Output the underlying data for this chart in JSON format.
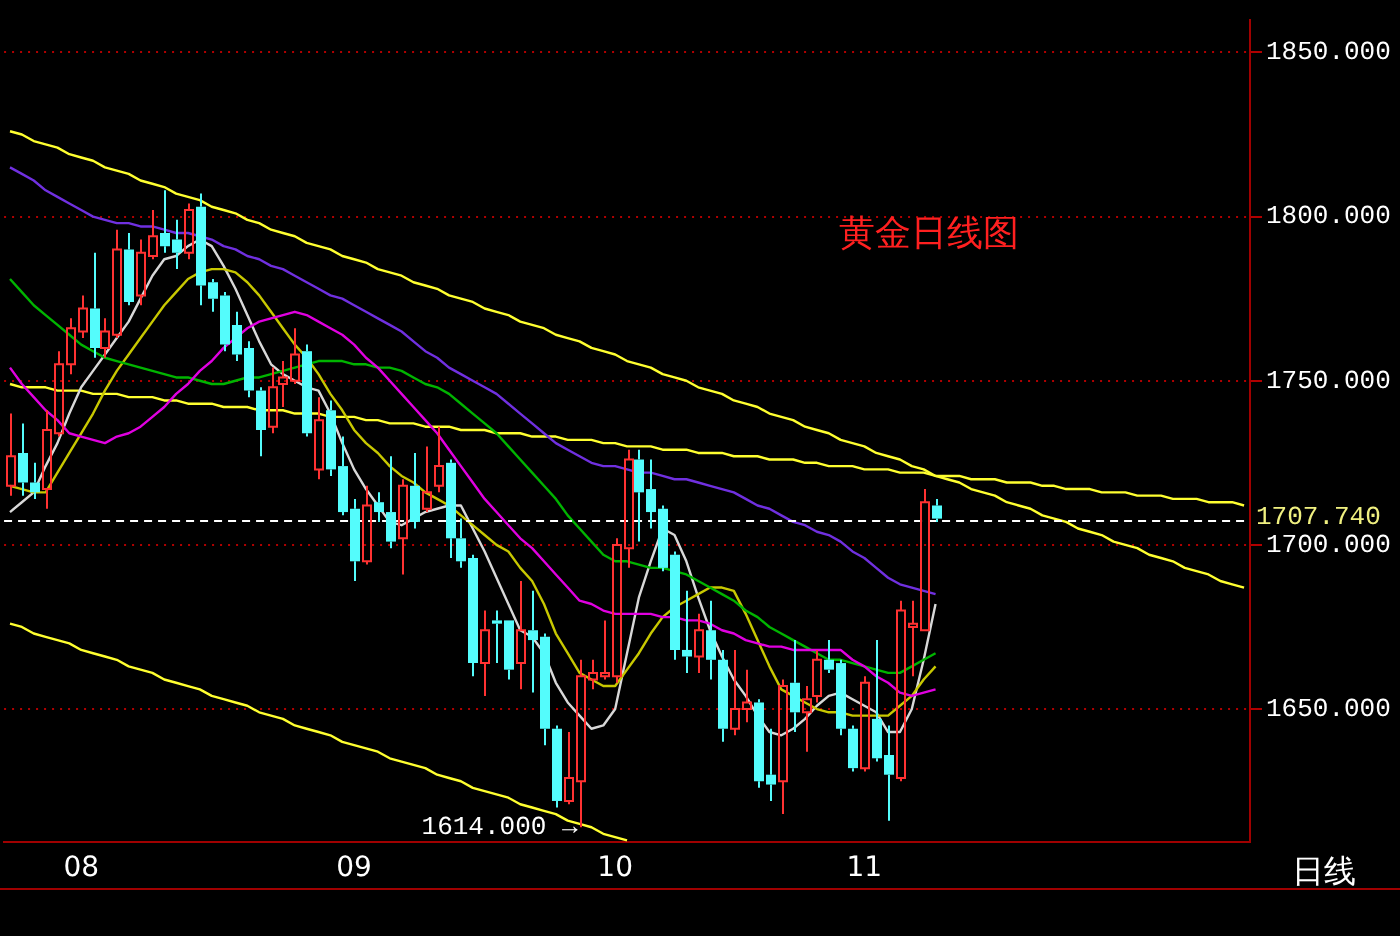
{
  "chart_data": {
    "type": "candlestick",
    "title": "黄金日线图",
    "xlabel": "日线",
    "categories": [
      null,
      null,
      null,
      null,
      null,
      null,
      "08",
      null,
      null,
      null,
      null,
      null,
      null,
      null,
      null,
      null,
      null,
      null,
      null,
      null,
      null,
      null,
      null,
      null,
      null,
      null,
      null,
      null,
      null,
      "09",
      null,
      null,
      null,
      null,
      null,
      null,
      null,
      null,
      null,
      null,
      null,
      null,
      null,
      null,
      null,
      null,
      null,
      null,
      null,
      null,
      null,
      "10",
      null,
      null,
      null,
      null,
      null,
      null,
      null,
      null,
      null,
      null,
      null,
      null,
      null,
      null,
      null,
      null,
      null,
      null,
      null,
      null,
      "11",
      null,
      null,
      null,
      null,
      null,
      null,
      null,
      null,
      null,
      null,
      null,
      null,
      null,
      null,
      null,
      null,
      null,
      null,
      null,
      null,
      null,
      null,
      null,
      null,
      null,
      null,
      null,
      null,
      null,
      null,
      null,
      null
    ],
    "ohlc": [
      [
        1718,
        1740,
        1715,
        1727
      ],
      [
        1728,
        1737,
        1715,
        1719
      ],
      [
        1719,
        1725,
        1714,
        1716
      ],
      [
        1717,
        1741,
        1711,
        1735
      ],
      [
        1734,
        1759,
        1733,
        1755
      ],
      [
        1755,
        1769,
        1752,
        1766
      ],
      [
        1765,
        1776,
        1763,
        1772
      ],
      [
        1772,
        1789,
        1757,
        1760
      ],
      [
        1760,
        1769,
        1757,
        1765
      ],
      [
        1764,
        1796,
        1763,
        1790
      ],
      [
        1790,
        1795,
        1773,
        1774
      ],
      [
        1776,
        1793,
        1773,
        1789
      ],
      [
        1788,
        1802,
        1787,
        1794
      ],
      [
        1795,
        1808,
        1789,
        1791
      ],
      [
        1793,
        1799,
        1784,
        1789
      ],
      [
        1789,
        1804,
        1787,
        1802
      ],
      [
        1803,
        1807,
        1773,
        1779
      ],
      [
        1780,
        1781,
        1771,
        1775
      ],
      [
        1776,
        1777,
        1759,
        1761
      ],
      [
        1767,
        1771,
        1756,
        1758
      ],
      [
        1760,
        1762,
        1745,
        1747
      ],
      [
        1747,
        1748,
        1727,
        1735
      ],
      [
        1736,
        1754,
        1734,
        1748
      ],
      [
        1749,
        1756,
        1742,
        1751
      ],
      [
        1750,
        1766,
        1749,
        1758
      ],
      [
        1759,
        1761,
        1733,
        1734
      ],
      [
        1723,
        1745,
        1720,
        1738
      ],
      [
        1741,
        1744,
        1721,
        1723
      ],
      [
        1724,
        1733,
        1709,
        1710
      ],
      [
        1711,
        1714,
        1689,
        1695
      ],
      [
        1695,
        1718,
        1694,
        1712
      ],
      [
        1713,
        1716,
        1707,
        1710
      ],
      [
        1710,
        1727,
        1699,
        1701
      ],
      [
        1702,
        1720,
        1691,
        1718
      ],
      [
        1718,
        1728,
        1705,
        1707
      ],
      [
        1711,
        1730,
        1710,
        1716
      ],
      [
        1718,
        1736,
        1716,
        1724
      ],
      [
        1725,
        1726,
        1696,
        1702
      ],
      [
        1702,
        1708,
        1693,
        1695
      ],
      [
        1696,
        1697,
        1660,
        1664
      ],
      [
        1664,
        1680,
        1654,
        1674
      ],
      [
        1677,
        1680,
        1664,
        1676
      ],
      [
        1677,
        1677,
        1659,
        1662
      ],
      [
        1664,
        1689,
        1656,
        1674
      ],
      [
        1674,
        1686,
        1655,
        1671
      ],
      [
        1672,
        1673,
        1639,
        1644
      ],
      [
        1644,
        1645,
        1620,
        1622
      ],
      [
        1622,
        1643,
        1621,
        1629
      ],
      [
        1628,
        1665,
        1614,
        1660
      ],
      [
        1659,
        1665,
        1656,
        1661
      ],
      [
        1660,
        1677,
        1659,
        1661
      ],
      [
        1660,
        1702,
        1658,
        1700
      ],
      [
        1699,
        1729,
        1693,
        1726
      ],
      [
        1726,
        1729,
        1701,
        1716
      ],
      [
        1717,
        1726,
        1705,
        1710
      ],
      [
        1711,
        1712,
        1692,
        1693
      ],
      [
        1697,
        1698,
        1665,
        1668
      ],
      [
        1668,
        1686,
        1661,
        1666
      ],
      [
        1666,
        1679,
        1661,
        1674
      ],
      [
        1674,
        1683,
        1659,
        1665
      ],
      [
        1665,
        1668,
        1640,
        1644
      ],
      [
        1644,
        1668,
        1642,
        1650
      ],
      [
        1650,
        1662,
        1646,
        1652
      ],
      [
        1652,
        1653,
        1626,
        1628
      ],
      [
        1630,
        1644,
        1622,
        1627
      ],
      [
        1628,
        1659,
        1618,
        1657
      ],
      [
        1658,
        1671,
        1643,
        1649
      ],
      [
        1649,
        1657,
        1637,
        1653
      ],
      [
        1654,
        1668,
        1652,
        1665
      ],
      [
        1665,
        1671,
        1661,
        1662
      ],
      [
        1664,
        1665,
        1642,
        1644
      ],
      [
        1644,
        1645,
        1631,
        1632
      ],
      [
        1632,
        1660,
        1631,
        1658
      ],
      [
        1647,
        1671,
        1634,
        1635
      ],
      [
        1636,
        1645,
        1616,
        1630
      ],
      [
        1629,
        1683,
        1628,
        1680
      ],
      [
        1675,
        1683,
        1660,
        1676
      ],
      [
        1674,
        1717,
        1674,
        1713
      ],
      [
        1712,
        1714,
        1707,
        1708
      ],
      null,
      null,
      null,
      null,
      null,
      null,
      null,
      null,
      null,
      null,
      null,
      null,
      null,
      null,
      null,
      null,
      null,
      null,
      null,
      null,
      null,
      null,
      null,
      null,
      null,
      null
    ],
    "colors": [
      "#ff3232",
      "#54fcfc",
      "#54fcfc",
      "#ff3232",
      "#ff3232",
      "#ff3232",
      "#ff3232",
      "#54fcfc",
      "#ff3232",
      "#ff3232",
      "#54fcfc",
      "#ff3232",
      "#ff3232",
      "#54fcfc",
      "#54fcfc",
      "#ff3232",
      "#54fcfc",
      "#54fcfc",
      "#54fcfc",
      "#54fcfc",
      "#54fcfc",
      "#54fcfc",
      "#ff3232",
      "#ff3232",
      "#ff3232",
      "#54fcfc",
      "#ff3232",
      "#54fcfc",
      "#54fcfc",
      "#54fcfc",
      "#ff3232",
      "#54fcfc",
      "#54fcfc",
      "#ff3232",
      "#54fcfc",
      "#ff3232",
      "#ff3232",
      "#54fcfc",
      "#54fcfc",
      "#54fcfc",
      "#ff3232",
      "#54fcfc",
      "#54fcfc",
      "#ff3232",
      "#54fcfc",
      "#54fcfc",
      "#54fcfc",
      "#ff3232",
      "#ff3232",
      "#ff3232",
      "#ff3232",
      "#ff3232",
      "#ff3232",
      "#54fcfc",
      "#54fcfc",
      "#54fcfc",
      "#54fcfc",
      "#54fcfc",
      "#ff3232",
      "#54fcfc",
      "#54fcfc",
      "#ff3232",
      "#ff3232",
      "#54fcfc",
      "#54fcfc",
      "#ff3232",
      "#54fcfc",
      "#ff3232",
      "#ff3232",
      "#54fcfc",
      "#54fcfc",
      "#54fcfc",
      "#ff3232",
      "#54fcfc",
      "#54fcfc",
      "#ff3232",
      "#ff3232",
      "#ff3232",
      "#54fcfc",
      null,
      null,
      null,
      null,
      null,
      null,
      null,
      null,
      null,
      null,
      null,
      null,
      null,
      null,
      null,
      null,
      null,
      null,
      null,
      null,
      null,
      null,
      null,
      null,
      null,
      null
    ],
    "series": [
      {
        "type": "line",
        "color": "#7030e0",
        "values": [
          1815,
          1813,
          1811,
          1808,
          1806,
          1804,
          1802,
          1800,
          1799,
          1798,
          1798,
          1797,
          1797,
          1796,
          1795,
          1795,
          1794,
          1793,
          1791,
          1790,
          1788,
          1787,
          1785,
          1784,
          1782,
          1780,
          1778,
          1776,
          1775,
          1773,
          1771,
          1769,
          1767,
          1765,
          1762,
          1759,
          1757,
          1754,
          1752,
          1750,
          1748,
          1746,
          1743,
          1740,
          1737,
          1734,
          1731,
          1729,
          1727,
          1725,
          1724,
          1724,
          1723,
          1722,
          1722,
          1721,
          1720,
          1720,
          1719,
          1718,
          1717,
          1716,
          1714,
          1712,
          1711,
          1709,
          1707,
          1706,
          1704,
          1703,
          1701,
          1698,
          1696,
          1693,
          1690,
          1688,
          1687,
          1686,
          1685,
          null,
          null,
          null,
          null,
          null,
          null,
          null,
          null,
          null,
          null,
          null,
          null,
          null,
          null,
          null,
          null,
          null,
          null,
          null,
          null,
          null,
          null,
          null,
          null,
          null,
          null
        ]
      },
      {
        "type": "line",
        "color": "#e000e0",
        "values": [
          1754,
          1749,
          1745,
          1741,
          1738,
          1734,
          1733,
          1732,
          1731,
          1733,
          1734,
          1736,
          1739,
          1742,
          1746,
          1749,
          1753,
          1756,
          1760,
          1763,
          1766,
          1768,
          1769,
          1770,
          1771,
          1770,
          1768,
          1766,
          1764,
          1761,
          1757,
          1754,
          1750,
          1746,
          1742,
          1738,
          1734,
          1729,
          1724,
          1719,
          1714,
          1710,
          1706,
          1702,
          1699,
          1695,
          1691,
          1687,
          1683,
          1682,
          1680,
          1679,
          1679,
          1679,
          1679,
          1678,
          1678,
          1677,
          1677,
          1676,
          1674,
          1673,
          1671,
          1670,
          1669,
          1669,
          1668,
          1668,
          1668,
          1668,
          1668,
          1665,
          1663,
          1660,
          1658,
          1655,
          1654,
          1655,
          1656,
          null,
          null,
          null,
          null,
          null,
          null,
          null,
          null,
          null,
          null,
          null,
          null,
          null,
          null,
          null,
          null,
          null,
          null,
          null,
          null,
          null,
          null,
          null,
          null,
          null,
          null
        ]
      },
      {
        "type": "line",
        "color": "#00b400",
        "values": [
          1781,
          1777,
          1773,
          1770,
          1767,
          1764,
          1761,
          1759,
          1757,
          1756,
          1755,
          1754,
          1753,
          1752,
          1751,
          1751,
          1750,
          1749,
          1749,
          1750,
          1751,
          1751,
          1752,
          1753,
          1754,
          1755,
          1756,
          1756,
          1756,
          1755,
          1755,
          1754,
          1754,
          1753,
          1751,
          1749,
          1748,
          1746,
          1743,
          1740,
          1737,
          1734,
          1730,
          1726,
          1722,
          1718,
          1714,
          1709,
          1705,
          1701,
          1697,
          1695,
          1695,
          1694,
          1693,
          1693,
          1692,
          1691,
          1689,
          1687,
          1685,
          1683,
          1680,
          1678,
          1675,
          1673,
          1671,
          1669,
          1667,
          1665,
          1665,
          1664,
          1663,
          1662,
          1661,
          1661,
          1663,
          1665,
          1667,
          null,
          null,
          null,
          null,
          null,
          null,
          null,
          null,
          null,
          null,
          null,
          null,
          null,
          null,
          null,
          null,
          null,
          null,
          null,
          null,
          null,
          null,
          null,
          null,
          null,
          null
        ]
      },
      {
        "type": "line",
        "color": "#c8c800",
        "values": [
          1718,
          1717,
          1716,
          1716,
          1722,
          1728,
          1734,
          1740,
          1747,
          1753,
          1758,
          1763,
          1768,
          1773,
          1777,
          1781,
          1783,
          1784,
          1784,
          1783,
          1780,
          1776,
          1771,
          1766,
          1761,
          1757,
          1752,
          1746,
          1741,
          1735,
          1731,
          1728,
          1724,
          1721,
          1719,
          1716,
          1714,
          1712,
          1709,
          1706,
          1703,
          1700,
          1698,
          1693,
          1689,
          1682,
          1673,
          1667,
          1661,
          1659,
          1657,
          1657,
          1662,
          1667,
          1673,
          1678,
          1681,
          1683,
          1685,
          1687,
          1687,
          1686,
          1679,
          1671,
          1663,
          1656,
          1654,
          1652,
          1650,
          1649,
          1649,
          1648,
          1648,
          1648,
          1648,
          1651,
          1654,
          1659,
          1663,
          null,
          null,
          null,
          null,
          null,
          null,
          null,
          null,
          null,
          null,
          null,
          null,
          null,
          null,
          null,
          null,
          null,
          null,
          null,
          null,
          null,
          null,
          null,
          null,
          null,
          null
        ]
      },
      {
        "type": "line",
        "color": "#d8d8d8",
        "values": [
          1710,
          1713,
          1716,
          1724,
          1731,
          1740,
          1748,
          1753,
          1758,
          1763,
          1768,
          1775,
          1782,
          1787,
          1788,
          1791,
          1793,
          1791,
          1785,
          1778,
          1770,
          1762,
          1755,
          1752,
          1750,
          1748,
          1747,
          1740,
          1731,
          1723,
          1717,
          1712,
          1707,
          1706,
          1708,
          1710,
          1711,
          1712,
          1712,
          1705,
          1698,
          1690,
          1682,
          1674,
          1672,
          1667,
          1658,
          1652,
          1648,
          1644,
          1645,
          1650,
          1667,
          1684,
          1695,
          1705,
          1703,
          1695,
          1684,
          1674,
          1666,
          1659,
          1654,
          1648,
          1643,
          1642,
          1644,
          1647,
          1651,
          1654,
          1655,
          1653,
          1651,
          1649,
          1643,
          1643,
          1650,
          1665,
          1682,
          null,
          null,
          null,
          null,
          null,
          null,
          null,
          null,
          null,
          null,
          null,
          null,
          null,
          null,
          null,
          null,
          null,
          null,
          null,
          null,
          null,
          null,
          null,
          null,
          null,
          null
        ]
      },
      {
        "type": "line",
        "color": "#ffff30",
        "values": [
          1826,
          1825,
          1823,
          1822,
          1821,
          1819,
          1818,
          1817,
          1815,
          1814,
          1813,
          1811,
          1810,
          1809,
          1807,
          1806,
          1805,
          1803,
          1802,
          1801,
          1799,
          1798,
          1796,
          1795,
          1794,
          1792,
          1791,
          1790,
          1788,
          1787,
          1786,
          1784,
          1783,
          1782,
          1780,
          1779,
          1778,
          1776,
          1775,
          1774,
          1772,
          1771,
          1770,
          1768,
          1767,
          1766,
          1764,
          1763,
          1762,
          1760,
          1759,
          1758,
          1756,
          1755,
          1754,
          1752,
          1751,
          1750,
          1748,
          1747,
          1746,
          1744,
          1743,
          1742,
          1740,
          1739,
          1738,
          1736,
          1735,
          1734,
          1732,
          1731,
          1730,
          1728,
          1727,
          1726,
          1724,
          1723,
          1721,
          1720,
          1719,
          1717,
          1716,
          1715,
          1713,
          1712,
          1711,
          1709,
          1708,
          1707,
          1705,
          1704,
          1703,
          1701,
          1700,
          1699,
          1697,
          1696,
          1695,
          1693,
          1692,
          1691,
          1689,
          1688,
          1687
        ]
      },
      {
        "type": "line",
        "color": "#ffff30",
        "values": [
          1749,
          1748,
          1748,
          1748,
          1747,
          1747,
          1747,
          1746,
          1746,
          1746,
          1745,
          1745,
          1745,
          1744,
          1744,
          1743,
          1743,
          1743,
          1742,
          1742,
          1742,
          1741,
          1741,
          1741,
          1740,
          1740,
          1740,
          1739,
          1739,
          1739,
          1738,
          1738,
          1737,
          1737,
          1737,
          1736,
          1736,
          1736,
          1735,
          1735,
          1735,
          1734,
          1734,
          1734,
          1733,
          1733,
          1733,
          1732,
          1732,
          1732,
          1731,
          1731,
          1730,
          1730,
          1730,
          1729,
          1729,
          1729,
          1728,
          1728,
          1728,
          1727,
          1727,
          1727,
          1726,
          1726,
          1726,
          1725,
          1725,
          1724,
          1724,
          1724,
          1723,
          1723,
          1723,
          1722,
          1722,
          1722,
          1721,
          1721,
          1721,
          1720,
          1720,
          1720,
          1719,
          1719,
          1719,
          1718,
          1718,
          1717,
          1717,
          1717,
          1716,
          1716,
          1716,
          1715,
          1715,
          1715,
          1714,
          1714,
          1714,
          1713,
          1713,
          1713,
          1712
        ]
      },
      {
        "type": "line",
        "color": "#ffff30",
        "values": [
          1676,
          1675,
          1673,
          1672,
          1671,
          1670,
          1668,
          1667,
          1666,
          1665,
          1663,
          1662,
          1661,
          1659,
          1658,
          1657,
          1656,
          1654,
          1653,
          1652,
          1651,
          1649,
          1648,
          1647,
          1645,
          1644,
          1643,
          1642,
          1640,
          1639,
          1638,
          1637,
          1635,
          1634,
          1633,
          1632,
          1630,
          1629,
          1628,
          1626,
          1625,
          1624,
          1623,
          1621,
          1620,
          1619,
          1618,
          1616,
          1615,
          1614,
          1612,
          1611,
          1610,
          null,
          null,
          null,
          null,
          null,
          null,
          null,
          null,
          null,
          null,
          null,
          null,
          null,
          null,
          null,
          null,
          null,
          null,
          null,
          null,
          null,
          null,
          null,
          null,
          null,
          null,
          null,
          null,
          null,
          null,
          null,
          null,
          null,
          null,
          null,
          null,
          null,
          null,
          null,
          null,
          null,
          null,
          null,
          null,
          null,
          null,
          null,
          null,
          null,
          null,
          null,
          null
        ]
      }
    ],
    "ylim": [
      1609.5,
      1860
    ],
    "yticks": [
      {
        "value": 1650,
        "label": "1650.000"
      },
      {
        "value": 1700,
        "label": "1700.000"
      },
      {
        "value": 1750,
        "label": "1750.000"
      },
      {
        "value": 1800,
        "label": "1800.000"
      },
      {
        "value": 1850,
        "label": "1850.000"
      }
    ],
    "ref_lines": [
      {
        "axis": "y",
        "value": 1707.74,
        "label": "1707.740",
        "color": "#ffffff",
        "line_style": "dashed"
      }
    ],
    "annotations": [
      "1614.000 →"
    ],
    "grid": "y",
    "legend": false
  }
}
